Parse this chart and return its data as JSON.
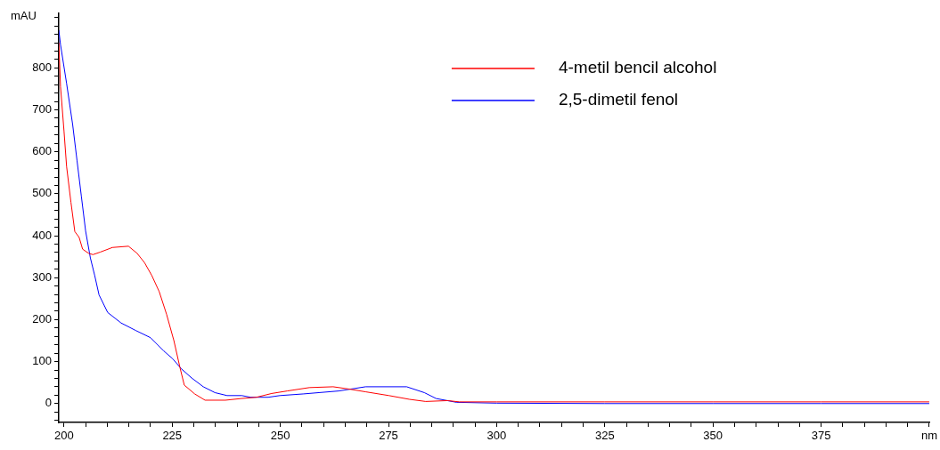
{
  "chart_data": {
    "type": "line",
    "ylabel": "mAU",
    "legend": "top right",
    "grid": false,
    "marker": "none",
    "line_style": "solid",
    "xlim": [
      198.8,
      400.2
    ],
    "ylim": [
      -45,
      930
    ],
    "xticks": [
      200,
      {
        "value": 205,
        "label": null
      },
      {
        "value": 210,
        "label": null
      },
      {
        "value": 215,
        "label": null
      },
      {
        "value": 220,
        "label": null
      },
      225,
      {
        "value": 230,
        "label": null
      },
      {
        "value": 235,
        "label": null
      },
      {
        "value": 240,
        "label": null
      },
      {
        "value": 245,
        "label": null
      },
      250,
      {
        "value": 255,
        "label": null
      },
      {
        "value": 260,
        "label": null
      },
      {
        "value": 265,
        "label": null
      },
      {
        "value": 270,
        "label": null
      },
      275,
      {
        "value": 280,
        "label": null
      },
      {
        "value": 285,
        "label": null
      },
      {
        "value": 290,
        "label": null
      },
      {
        "value": 295,
        "label": null
      },
      300,
      {
        "value": 305,
        "label": null
      },
      {
        "value": 310,
        "label": null
      },
      {
        "value": 315,
        "label": null
      },
      {
        "value": 320,
        "label": null
      },
      325,
      {
        "value": 330,
        "label": null
      },
      {
        "value": 335,
        "label": null
      },
      {
        "value": 340,
        "label": null
      },
      {
        "value": 345,
        "label": null
      },
      350,
      {
        "value": 355,
        "label": null
      },
      {
        "value": 360,
        "label": null
      },
      {
        "value": 365,
        "label": null
      },
      {
        "value": 370,
        "label": null
      },
      375,
      {
        "value": 380,
        "label": null
      },
      {
        "value": 385,
        "label": null
      },
      {
        "value": 390,
        "label": null
      },
      {
        "value": 395,
        "label": null
      },
      {
        "value": 400,
        "label": "nm"
      }
    ],
    "yticks": [
      {
        "value": -40,
        "label": null
      },
      {
        "value": -20,
        "label": null
      },
      0,
      {
        "value": 20,
        "label": null
      },
      {
        "value": 40,
        "label": null
      },
      {
        "value": 60,
        "label": null
      },
      {
        "value": 80,
        "label": null
      },
      100,
      {
        "value": 120,
        "label": null
      },
      {
        "value": 140,
        "label": null
      },
      {
        "value": 160,
        "label": null
      },
      {
        "value": 180,
        "label": null
      },
      200,
      {
        "value": 220,
        "label": null
      },
      {
        "value": 240,
        "label": null
      },
      {
        "value": 260,
        "label": null
      },
      {
        "value": 280,
        "label": null
      },
      300,
      {
        "value": 320,
        "label": null
      },
      {
        "value": 340,
        "label": null
      },
      {
        "value": 360,
        "label": null
      },
      {
        "value": 380,
        "label": null
      },
      400,
      {
        "value": 420,
        "label": null
      },
      {
        "value": 440,
        "label": null
      },
      {
        "value": 460,
        "label": null
      },
      {
        "value": 480,
        "label": null
      },
      500,
      {
        "value": 520,
        "label": null
      },
      {
        "value": 540,
        "label": null
      },
      {
        "value": 560,
        "label": null
      },
      {
        "value": 580,
        "label": null
      },
      600,
      {
        "value": 620,
        "label": null
      },
      {
        "value": 640,
        "label": null
      },
      {
        "value": 660,
        "label": null
      },
      {
        "value": 680,
        "label": null
      },
      700,
      {
        "value": 720,
        "label": null
      },
      {
        "value": 740,
        "label": null
      },
      {
        "value": 760,
        "label": null
      },
      {
        "value": 780,
        "label": null
      },
      800,
      {
        "value": 820,
        "label": null
      },
      {
        "value": 840,
        "label": null
      },
      {
        "value": 860,
        "label": null
      },
      {
        "value": 880,
        "label": null
      },
      {
        "value": 900,
        "label": null
      },
      {
        "value": 920,
        "label": null
      }
    ],
    "series": [
      {
        "name": "4-metil bencil alcohol",
        "color": "#ff0000",
        "x": [
          198.8,
          199.2,
          200,
          200.6,
          201.6,
          202.5,
          203.5,
          204.3,
          205.7,
          206.7,
          208.4,
          211.2,
          214.9,
          216.9,
          218.6,
          220.3,
          222,
          223.7,
          225.4,
          226.8,
          227.8,
          230.2,
          232.6,
          237.3,
          241,
          244.5,
          248,
          251.6,
          256.7,
          262.2,
          265.6,
          269.7,
          275.1,
          279.9,
          283.6,
          288.7,
          291.4,
          300,
          325,
          350,
          375,
          400
        ],
        "values": [
          860,
          755,
          650,
          565,
          480,
          410,
          396,
          368,
          358,
          355,
          361,
          372,
          375,
          358,
          336,
          305,
          267,
          213,
          150,
          86,
          44,
          23,
          8,
          8,
          12,
          15,
          24,
          30,
          38,
          40,
          35,
          28,
          19,
          10,
          5,
          7,
          4,
          4,
          4,
          4,
          4,
          4
        ]
      },
      {
        "name": "2,5-dimetil fenol",
        "color": "#0000ff",
        "x": [
          198.8,
          199.2,
          200.6,
          202,
          203,
          204,
          205,
          206.1,
          207.1,
          208.1,
          210.1,
          213.2,
          216.6,
          220,
          223.1,
          225.1,
          227.1,
          229.5,
          232.2,
          234.9,
          237.7,
          241.1,
          243.1,
          247.2,
          249.9,
          255.4,
          263.5,
          269.7,
          279.2,
          283.3,
          286,
          290.7,
          300,
          325,
          350,
          375,
          400
        ],
        "values": [
          890,
          855,
          763,
          665,
          580,
          495,
          411,
          347,
          305,
          259,
          217,
          192,
          174,
          157,
          125,
          107,
          83,
          61,
          40,
          26,
          19,
          19,
          15,
          15,
          19,
          23,
          30,
          40,
          40,
          26,
          12,
          3,
          1,
          0,
          0,
          0,
          0
        ]
      }
    ]
  }
}
